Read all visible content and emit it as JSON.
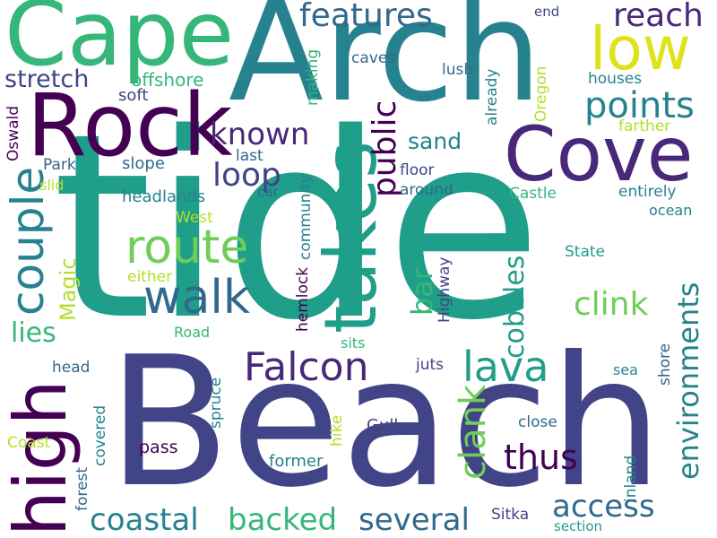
{
  "palette": {
    "dark_purple": "#440154",
    "indigo": "#482878",
    "slate_blue": "#414487",
    "steel_blue": "#31688e",
    "teal_blue": "#26828e",
    "teal": "#1f9e89",
    "sea_green": "#35b779",
    "green": "#6ece58",
    "lime": "#b5de2b",
    "yellow": "#fde725"
  },
  "words": {
    "tide": "tide",
    "beach": "Beach",
    "arch": "Arch",
    "cape": "Cape",
    "rock": "Rock",
    "cove": "Cove",
    "takes": "takes",
    "high": "high",
    "low": "low",
    "couple": "couple",
    "route": "route",
    "walk": "walk",
    "falcon": "Falcon",
    "lava": "lava",
    "features": "features",
    "reach": "reach",
    "points": "points",
    "known": "known",
    "loop": "loop",
    "public": "public",
    "sand": "sand",
    "clink": "clink",
    "clank": "clank",
    "cobbles": "cobbles",
    "environments": "environments",
    "coastal": "coastal",
    "backed": "backed",
    "several": "several",
    "access": "access",
    "thus": "thus",
    "bar": "bar",
    "magic": "Magic",
    "lies": "lies",
    "stretch": "stretch",
    "offshore": "offshore",
    "soft": "soft",
    "slope": "slope",
    "park": "Park",
    "slid": "slid",
    "headlands": "headlands",
    "car": "car",
    "west": "West",
    "either": "either",
    "road": "Road",
    "head": "head",
    "coast": "Coast",
    "forest": "forest",
    "covered": "covered",
    "spruce": "spruce",
    "pass": "pass",
    "hike": "hike",
    "former": "former",
    "gull": "Gull",
    "sitka": "Sitka",
    "section": "section",
    "inland": "inland",
    "close": "close",
    "sea": "sea",
    "shore": "shore",
    "ocean": "ocean",
    "entirely": "entirely",
    "castle": "Castle",
    "state": "State",
    "around": "around",
    "floor": "floor",
    "farther": "farther",
    "oregon": "Oregon",
    "houses": "houses",
    "lush": "lush",
    "already": "already",
    "caves": "caves",
    "making": "making",
    "community": "community",
    "hemlock": "hemlock",
    "highway": "Highway",
    "juts": "juts",
    "sits": "sits",
    "end": "end",
    "last": "last",
    "oswald": "Oswald"
  }
}
